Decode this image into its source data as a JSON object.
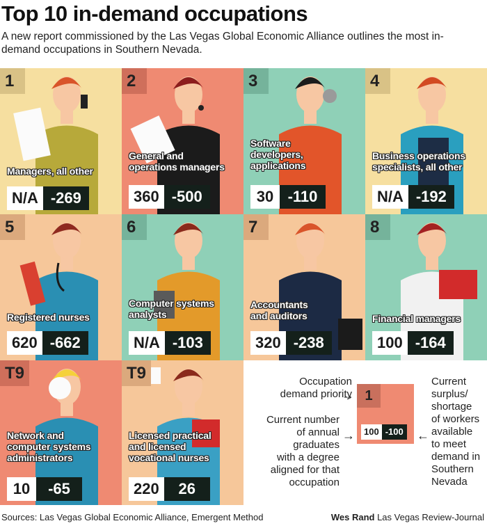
{
  "header": {
    "title": "Top 10 in-demand occupations",
    "subtitle": "A new report commissioned by the Las Vegas Global Economic Alliance outlines the most in-demand occupations in Southern Nevada."
  },
  "colors": {
    "yellow": "#f6dfa0",
    "salmon": "#ef8a72",
    "teal": "#8fd0b7",
    "peach": "#f6c79a",
    "rank_shade_yellow": "#d9c286",
    "rank_shade_salmon": "#cf6f5b",
    "rank_shade_teal": "#75b39b",
    "rank_shade_peach": "#dba97d"
  },
  "chart_data": {
    "type": "table",
    "columns": [
      "Rank",
      "Occupation",
      "Current number of annual graduates",
      "Current surplus/shortage of workers"
    ],
    "rows": [
      {
        "rank": "1",
        "occupation": "Managers, all other",
        "graduates": "N/A",
        "surplus": "-269"
      },
      {
        "rank": "2",
        "occupation": "General and operations managers",
        "graduates": "360",
        "surplus": "-500"
      },
      {
        "rank": "3",
        "occupation": "Software developers, applications",
        "graduates": "30",
        "surplus": "-110"
      },
      {
        "rank": "4",
        "occupation": "Business operations specialists, all other",
        "graduates": "N/A",
        "surplus": "-192"
      },
      {
        "rank": "5",
        "occupation": "Registered nurses",
        "graduates": "620",
        "surplus": "-662"
      },
      {
        "rank": "6",
        "occupation": "Computer systems analysts",
        "graduates": "N/A",
        "surplus": "-103"
      },
      {
        "rank": "7",
        "occupation": "Accountants and auditors",
        "graduates": "320",
        "surplus": "-238"
      },
      {
        "rank": "8",
        "occupation": "Financial managers",
        "graduates": "100",
        "surplus": "-164"
      },
      {
        "rank": "T9",
        "occupation": "Network and computer systems administrators",
        "graduates": "10",
        "surplus": "-65"
      },
      {
        "rank": "T9",
        "occupation": "Licensed practical and licensed vocational nurses",
        "graduates": "220",
        "surplus": "26"
      }
    ]
  },
  "tiles": [
    {
      "rank": "1",
      "label_lines": [
        "Managers, all other"
      ],
      "graduates": "N/A",
      "surplus": "-269"
    },
    {
      "rank": "2",
      "label_lines": [
        "General and",
        "operations managers"
      ],
      "graduates": "360",
      "surplus": "-500"
    },
    {
      "rank": "3",
      "label_lines": [
        "Software",
        "developers,",
        "applications"
      ],
      "graduates": "30",
      "surplus": "-110"
    },
    {
      "rank": "4",
      "label_lines": [
        "Business operations",
        "specialists, all other"
      ],
      "graduates": "N/A",
      "surplus": "-192"
    },
    {
      "rank": "5",
      "label_lines": [
        "Registered nurses"
      ],
      "graduates": "620",
      "surplus": "-662"
    },
    {
      "rank": "6",
      "label_lines": [
        "Computer systems",
        "analysts"
      ],
      "graduates": "N/A",
      "surplus": "-103"
    },
    {
      "rank": "7",
      "label_lines": [
        "Accountants",
        "and auditors"
      ],
      "graduates": "320",
      "surplus": "-238"
    },
    {
      "rank": "8",
      "label_lines": [
        "Financial managers"
      ],
      "graduates": "100",
      "surplus": "-164"
    },
    {
      "rank": "T9",
      "label_lines": [
        "Network and",
        "computer systems",
        "administrators"
      ],
      "graduates": "10",
      "surplus": "-65"
    },
    {
      "rank": "T9",
      "label_lines": [
        "Licensed practical",
        "and licensed",
        "vocational nurses"
      ],
      "graduates": "220",
      "surplus": "26"
    }
  ],
  "legend": {
    "priority_text_1": "Occupation",
    "priority_text_2": "demand priority",
    "graduates_lines": [
      "Current number",
      "of annual",
      "graduates",
      "with a degree",
      "aligned for that",
      "occupation"
    ],
    "surplus_lines": [
      "Current",
      "surplus/",
      "shortage",
      "of workers",
      "available",
      "to meet",
      "demand in",
      "Southern",
      "Nevada"
    ],
    "sample_rank": "1",
    "sample_graduates": "100",
    "sample_surplus": "-100"
  },
  "footer": {
    "sources": "Sources: Las Vegas Global Economic Alliance, Emergent Method",
    "credit_name": "Wes Rand",
    "credit_outlet": "Las Vegas Review-Journal"
  }
}
